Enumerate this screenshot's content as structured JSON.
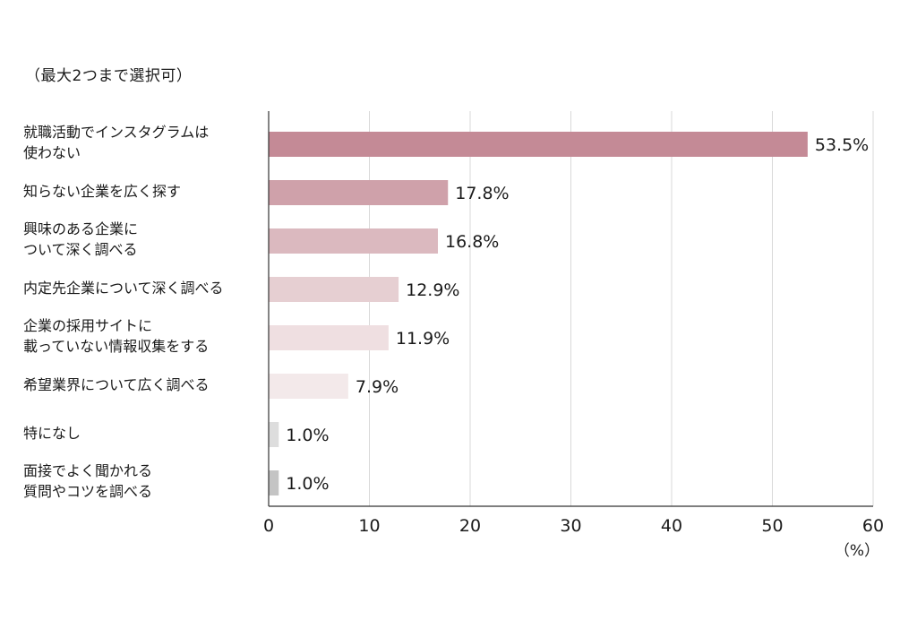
{
  "note": "（最大2つまで選択可）",
  "chart_data": {
    "type": "bar",
    "orientation": "horizontal",
    "categories": [
      "就職活動でインスタグラムは\n使わない",
      "知らない企業を広く探す",
      "興味のある企業に\nついて深く調べる",
      "内定先企業について深く調べる",
      "企業の採用サイトに\n載っていない情報収集をする",
      "希望業界について広く調べる",
      "特になし",
      "面接でよく聞かれる\n質問やコツを調べる"
    ],
    "values": [
      53.5,
      17.8,
      16.8,
      12.9,
      11.9,
      7.9,
      1.0,
      1.0
    ],
    "value_labels": [
      "53.5%",
      "17.8%",
      "16.8%",
      "12.9%",
      "11.9%",
      "7.9%",
      "1.0%",
      "1.0%"
    ],
    "colors": [
      "#c48a96",
      "#cfa1aa",
      "#dbb9bf",
      "#e6cfd2",
      "#efdfe1",
      "#f3e9ea",
      "#dddddd",
      "#c4c4c4"
    ],
    "xlim": [
      0,
      60
    ],
    "xticks": [
      "0",
      "10",
      "20",
      "30",
      "40",
      "50",
      "60"
    ],
    "xunit": "（%）",
    "grid": true
  }
}
